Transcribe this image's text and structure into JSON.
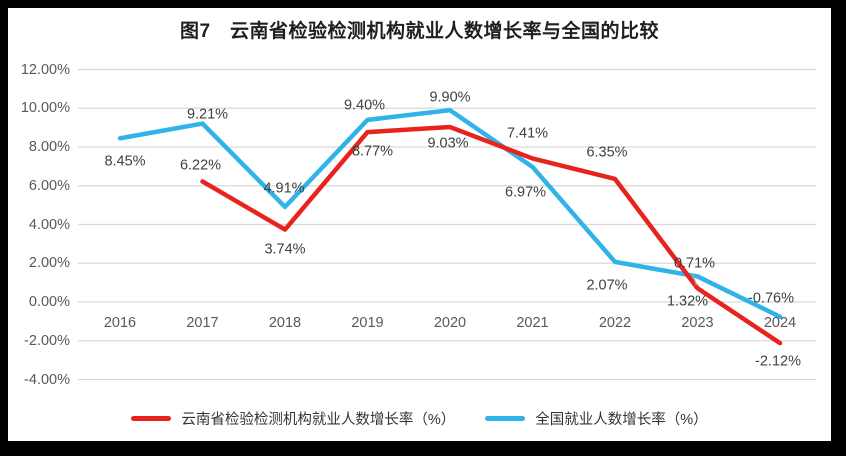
{
  "chart_data": {
    "type": "line",
    "title": "图7　云南省检验检测机构就业人数增长率与全国的比较",
    "categories": [
      "2016",
      "2017",
      "2018",
      "2019",
      "2020",
      "2021",
      "2022",
      "2023",
      "2024"
    ],
    "series": [
      {
        "name": "云南省检验检测机构就业人数增长率（%）",
        "color": "#e8231d",
        "values": [
          null,
          6.22,
          3.74,
          8.77,
          9.03,
          7.41,
          6.35,
          0.71,
          -2.12
        ],
        "labels": [
          "",
          "6.22%",
          "3.74%",
          "8.77%",
          "9.03%",
          "7.41%",
          "6.35%",
          "0.71%",
          "-2.12%"
        ],
        "label_offsets": [
          [
            0,
            0
          ],
          [
            -2,
            -15
          ],
          [
            0,
            20
          ],
          [
            5,
            20
          ],
          [
            -2,
            17
          ],
          [
            -5,
            -24
          ],
          [
            -8,
            -26
          ],
          [
            -3,
            -24
          ],
          [
            -2,
            19
          ]
        ]
      },
      {
        "name": "全国就业人数增长率（%）",
        "color": "#2fb3e8",
        "values": [
          8.45,
          9.21,
          4.91,
          9.4,
          9.9,
          6.97,
          2.07,
          1.32,
          -0.76
        ],
        "labels": [
          "8.45%",
          "9.21%",
          "4.91%",
          "9.40%",
          "9.90%",
          "6.97%",
          "2.07%",
          "1.32%",
          "-0.76%"
        ],
        "label_offsets": [
          [
            5,
            24
          ],
          [
            5,
            -9
          ],
          [
            -1,
            -18
          ],
          [
            -3,
            -14
          ],
          [
            0,
            -12
          ],
          [
            -7,
            26
          ],
          [
            -8,
            24
          ],
          [
            -10,
            26
          ],
          [
            -9,
            -18
          ]
        ]
      }
    ],
    "y_axis": {
      "ticks": [
        "12.00%",
        "10.00%",
        "8.00%",
        "6.00%",
        "4.00%",
        "2.00%",
        "0.00%",
        "-2.00%",
        "-4.00%"
      ],
      "values": [
        12,
        10,
        8,
        6,
        4,
        2,
        0,
        -2,
        -4
      ],
      "min": -4,
      "max": 12
    },
    "grid": true,
    "legend_position": "bottom",
    "leader_line": {
      "series": 0,
      "index": 7
    },
    "colors": {
      "gridline": "#d9d9d9",
      "axis_text": "#595959",
      "data_label": "#404040",
      "leader": "#a6a6a6",
      "background": "#ffffff",
      "frame": "#000000"
    }
  }
}
